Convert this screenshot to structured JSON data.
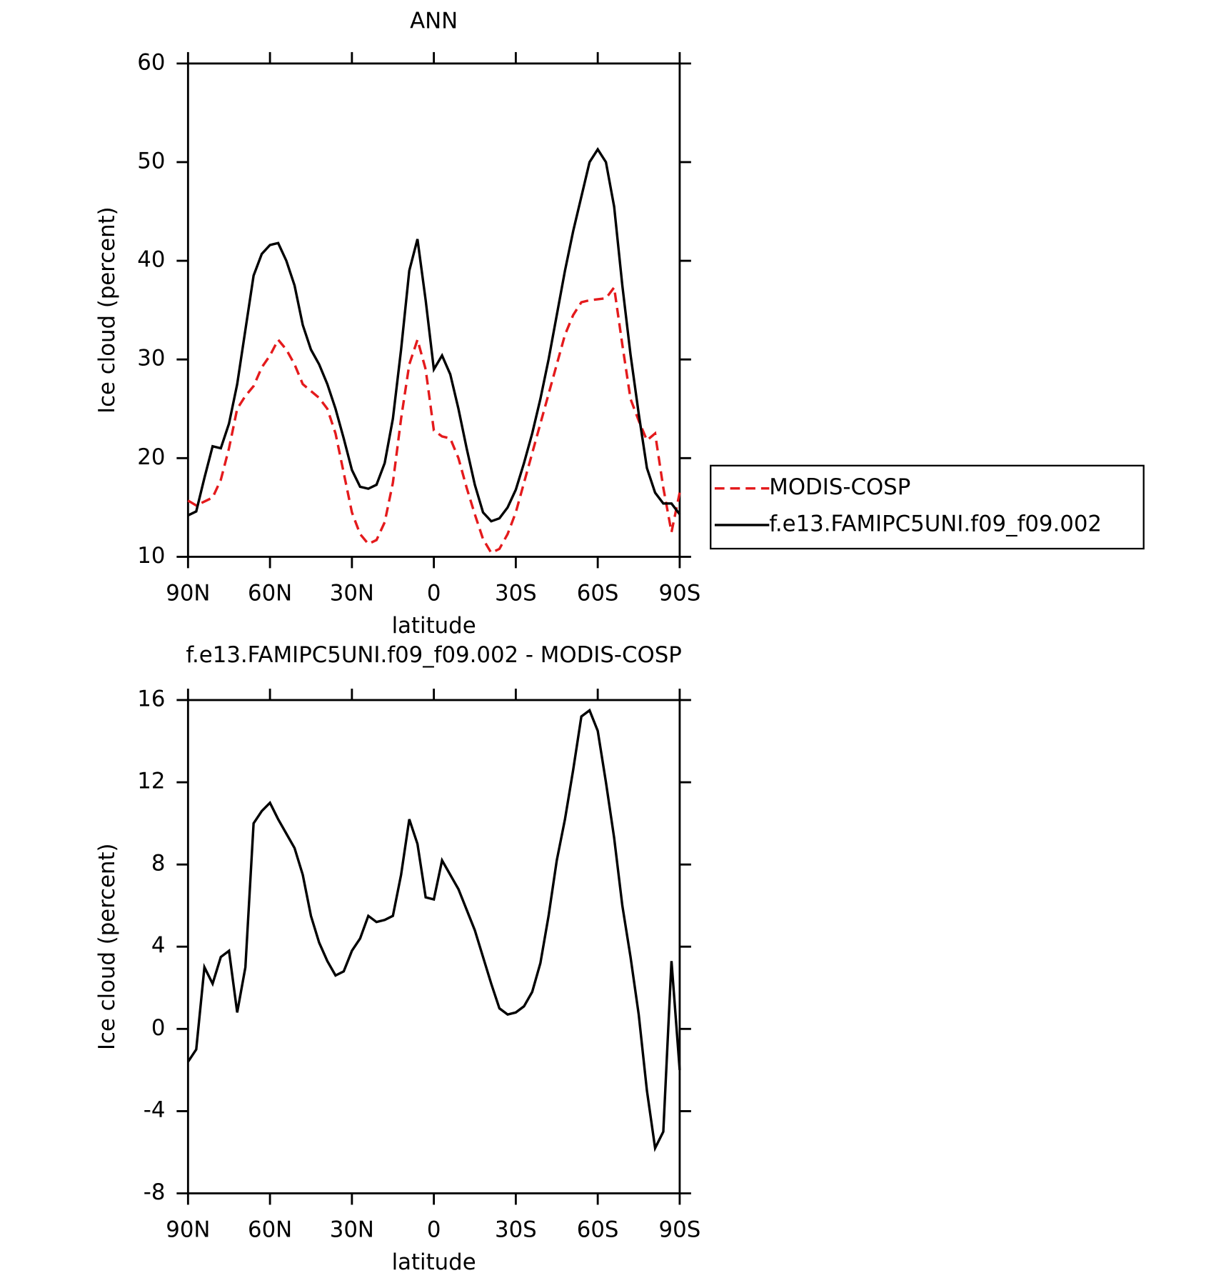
{
  "chart_data": [
    {
      "type": "line",
      "title": "ANN",
      "xlabel": "latitude",
      "ylabel": "Ice cloud (percent)",
      "x": [
        90,
        87,
        84,
        81,
        78,
        75,
        72,
        69,
        66,
        63,
        60,
        57,
        54,
        51,
        48,
        45,
        42,
        39,
        36,
        33,
        30,
        27,
        24,
        21,
        18,
        15,
        12,
        9,
        6,
        3,
        0,
        -3,
        -6,
        -9,
        -12,
        -15,
        -18,
        -21,
        -24,
        -27,
        -30,
        -33,
        -36,
        -39,
        -42,
        -45,
        -48,
        -51,
        -54,
        -57,
        -60,
        -63,
        -66,
        -69,
        -72,
        -75,
        -78,
        -81,
        -84,
        -87,
        -90
      ],
      "xlim": [
        90,
        -90
      ],
      "xticks": [
        {
          "value": 90,
          "label": "90N"
        },
        {
          "value": 60,
          "label": "60N"
        },
        {
          "value": 30,
          "label": "30N"
        },
        0,
        {
          "value": -30,
          "label": "30S"
        },
        {
          "value": -60,
          "label": "60S"
        },
        {
          "value": -90,
          "label": "90S"
        }
      ],
      "ylim": [
        10,
        60
      ],
      "yticks": [
        10,
        20,
        30,
        40,
        50,
        60
      ],
      "legend": "right",
      "series": [
        {
          "name": "MODIS-COSP",
          "color": "#e41a1c",
          "style": "dashed",
          "values": [
            15.7,
            15.2,
            15.6,
            16,
            17.8,
            21,
            25,
            26.3,
            27.3,
            29.2,
            30.4,
            32,
            31,
            29.5,
            27.5,
            26.8,
            26.1,
            25,
            22.5,
            18.5,
            14.5,
            12.3,
            11.3,
            11.7,
            13.5,
            17.5,
            24,
            29.5,
            32,
            29,
            22.8,
            22.2,
            22,
            20,
            17,
            14.3,
            11.8,
            10.4,
            10.8,
            12.3,
            14.5,
            17.5,
            20.5,
            23.5,
            26.5,
            29.5,
            32.5,
            34.5,
            35.8,
            36,
            36.1,
            36.2,
            37.3,
            31.5,
            26,
            23.8,
            21.8,
            22.5,
            17,
            12.5,
            16.5
          ]
        },
        {
          "name": "f.e13.FAMIPC5UNI.f09_f09.002",
          "color": "#000000",
          "style": "solid",
          "values": [
            14.2,
            14.6,
            18,
            21.2,
            21,
            23.5,
            27.5,
            33,
            38.5,
            40.7,
            41.6,
            41.8,
            40,
            37.5,
            33.5,
            31,
            29.5,
            27.5,
            25,
            22,
            18.8,
            17.1,
            16.9,
            17.3,
            19.5,
            24,
            31,
            39,
            42.2,
            36,
            29,
            30.4,
            28.5,
            25,
            21,
            17.3,
            14.5,
            13.6,
            13.9,
            15,
            16.8,
            19.5,
            22.5,
            26,
            30,
            34.5,
            39,
            43,
            46.5,
            50,
            51.3,
            50,
            45.5,
            37.5,
            30.5,
            24.5,
            19,
            16.5,
            15.4,
            15.4,
            14.3
          ]
        }
      ]
    },
    {
      "type": "line",
      "title": "f.e13.FAMIPC5UNI.f09_f09.002 - MODIS-COSP",
      "xlabel": "latitude",
      "ylabel": "Ice cloud (percent)",
      "x": [
        90,
        87,
        84,
        81,
        78,
        75,
        72,
        69,
        66,
        63,
        60,
        57,
        54,
        51,
        48,
        45,
        42,
        39,
        36,
        33,
        30,
        27,
        24,
        21,
        18,
        15,
        12,
        9,
        6,
        3,
        0,
        -3,
        -6,
        -9,
        -12,
        -15,
        -18,
        -21,
        -24,
        -27,
        -30,
        -33,
        -36,
        -39,
        -42,
        -45,
        -48,
        -51,
        -54,
        -57,
        -60,
        -63,
        -66,
        -69,
        -72,
        -75,
        -78,
        -81,
        -84,
        -87,
        -90
      ],
      "xlim": [
        90,
        -90
      ],
      "xticks": [
        {
          "value": 90,
          "label": "90N"
        },
        {
          "value": 60,
          "label": "60N"
        },
        {
          "value": 30,
          "label": "30N"
        },
        0,
        {
          "value": -30,
          "label": "30S"
        },
        {
          "value": -60,
          "label": "60S"
        },
        {
          "value": -90,
          "label": "90S"
        }
      ],
      "ylim": [
        -8,
        16
      ],
      "yticks": [
        -8,
        -4,
        0,
        4,
        8,
        12,
        16
      ],
      "series": [
        {
          "color": "#000000",
          "style": "solid",
          "values": [
            -1.6,
            -1,
            3,
            2.2,
            3.5,
            3.8,
            0.8,
            3,
            10,
            10.6,
            11,
            10.2,
            9.5,
            8.8,
            7.5,
            5.5,
            4.2,
            3.3,
            2.6,
            2.8,
            3.8,
            4.4,
            5.5,
            5.2,
            5.3,
            5.5,
            7.5,
            10.2,
            9,
            6.4,
            6.3,
            8.2,
            7.5,
            6.8,
            5.8,
            4.8,
            3.5,
            2.2,
            1,
            0.7,
            0.8,
            1.1,
            1.8,
            3.2,
            5.5,
            8.2,
            10.2,
            12.6,
            15.2,
            15.5,
            14.5,
            12,
            9.3,
            6,
            3.5,
            0.7,
            -3,
            -5.8,
            -5,
            3.3,
            -2
          ]
        }
      ]
    }
  ]
}
